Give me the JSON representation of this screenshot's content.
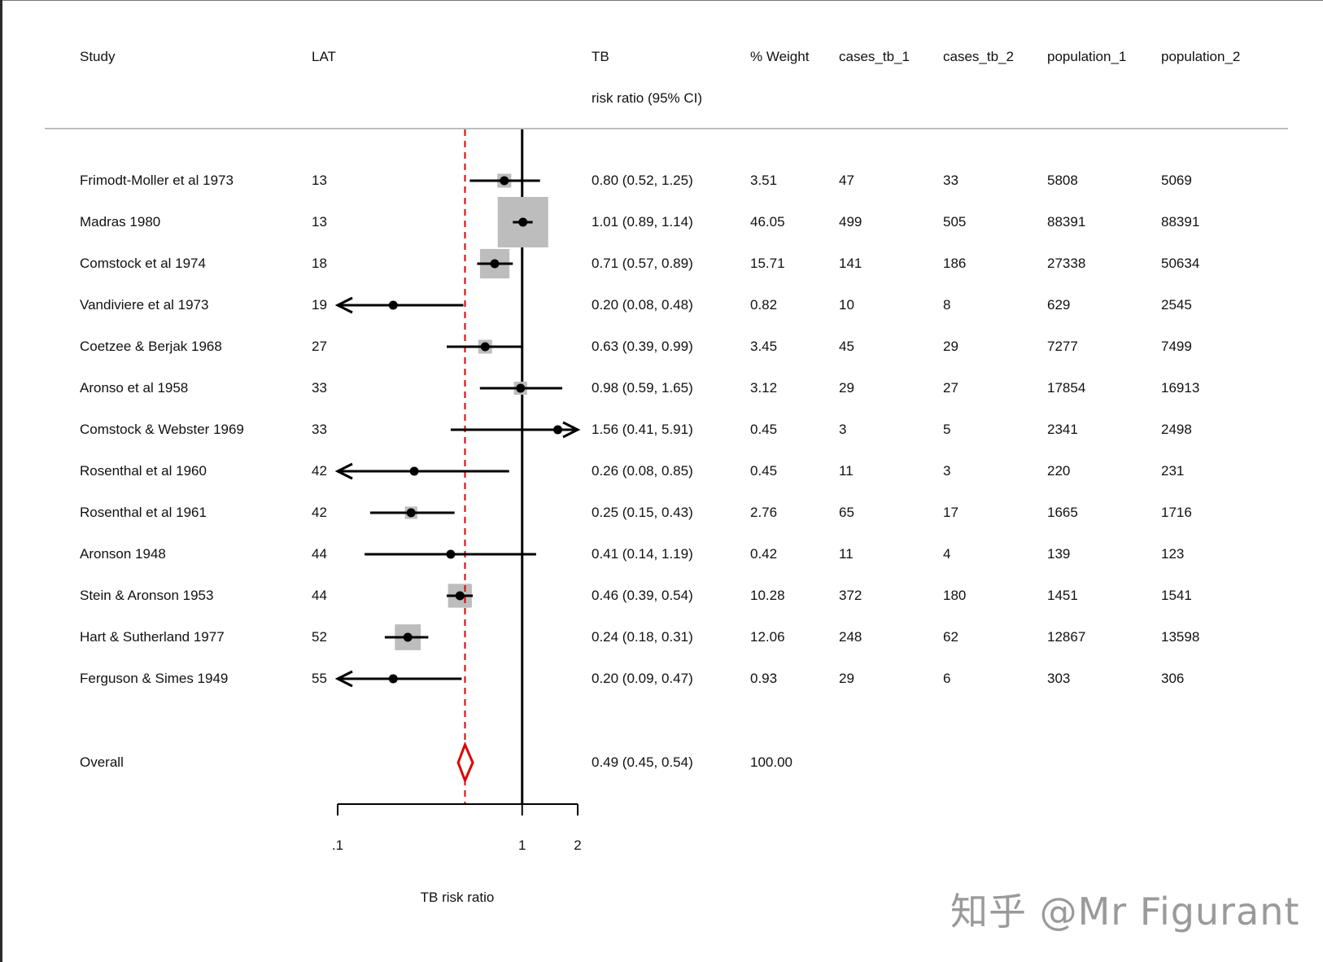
{
  "header": {
    "study": "Study",
    "lat": "LAT",
    "tb": "TB",
    "tb_sub": "risk ratio (95% CI)",
    "weight": "% Weight",
    "cases1": "cases_tb_1",
    "cases2": "cases_tb_2",
    "pop1": "population_1",
    "pop2": "population_2"
  },
  "rows": [
    {
      "study": "Frimodt-Moller et al 1973",
      "lat": "13",
      "rr": "0.80 (0.52, 1.25)",
      "weight": "3.51",
      "cases1": "47",
      "cases2": "33",
      "pop1": "5808",
      "pop2": "5069"
    },
    {
      "study": "Madras 1980",
      "lat": "13",
      "rr": "1.01 (0.89, 1.14)",
      "weight": "46.05",
      "cases1": "499",
      "cases2": "505",
      "pop1": "88391",
      "pop2": "88391"
    },
    {
      "study": "Comstock et al 1974",
      "lat": "18",
      "rr": "0.71 (0.57, 0.89)",
      "weight": "15.71",
      "cases1": "141",
      "cases2": "186",
      "pop1": "27338",
      "pop2": "50634"
    },
    {
      "study": "Vandiviere et al 1973",
      "lat": "19",
      "rr": "0.20 (0.08, 0.48)",
      "weight": "0.82",
      "cases1": "10",
      "cases2": "8",
      "pop1": "629",
      "pop2": "2545"
    },
    {
      "study": "Coetzee & Berjak 1968",
      "lat": "27",
      "rr": "0.63 (0.39, 0.99)",
      "weight": "3.45",
      "cases1": "45",
      "cases2": "29",
      "pop1": "7277",
      "pop2": "7499"
    },
    {
      "study": "Aronso et al 1958",
      "lat": "33",
      "rr": "0.98 (0.59, 1.65)",
      "weight": "3.12",
      "cases1": "29",
      "cases2": "27",
      "pop1": "17854",
      "pop2": "16913"
    },
    {
      "study": "Comstock & Webster 1969",
      "lat": "33",
      "rr": "1.56 (0.41, 5.91)",
      "weight": "0.45",
      "cases1": "3",
      "cases2": "5",
      "pop1": "2341",
      "pop2": "2498"
    },
    {
      "study": "Rosenthal et al 1960",
      "lat": "42",
      "rr": "0.26 (0.08, 0.85)",
      "weight": "0.45",
      "cases1": "11",
      "cases2": "3",
      "pop1": "220",
      "pop2": "231"
    },
    {
      "study": "Rosenthal et al 1961",
      "lat": "42",
      "rr": "0.25 (0.15, 0.43)",
      "weight": "2.76",
      "cases1": "65",
      "cases2": "17",
      "pop1": "1665",
      "pop2": "1716"
    },
    {
      "study": "Aronson 1948",
      "lat": "44",
      "rr": "0.41 (0.14, 1.19)",
      "weight": "0.42",
      "cases1": "11",
      "cases2": "4",
      "pop1": "139",
      "pop2": "123"
    },
    {
      "study": "Stein & Aronson 1953",
      "lat": "44",
      "rr": "0.46 (0.39, 0.54)",
      "weight": "10.28",
      "cases1": "372",
      "cases2": "180",
      "pop1": "1451",
      "pop2": "1541"
    },
    {
      "study": "Hart & Sutherland 1977",
      "lat": "52",
      "rr": "0.24 (0.18, 0.31)",
      "weight": "12.06",
      "cases1": "248",
      "cases2": "62",
      "pop1": "12867",
      "pop2": "13598"
    },
    {
      "study": "Ferguson & Simes 1949",
      "lat": "55",
      "rr": "0.20 (0.09, 0.47)",
      "weight": "0.93",
      "cases1": "29",
      "cases2": "6",
      "pop1": "303",
      "pop2": "306"
    }
  ],
  "overall": {
    "study": "Overall",
    "rr": "0.49 (0.45, 0.54)",
    "weight": "100.00"
  },
  "watermark": "知乎 @Mr Figurant",
  "chart_data": {
    "type": "forest",
    "xlabel": "TB risk ratio",
    "x_scale": "log",
    "xlim": [
      0.1,
      2
    ],
    "x_ticks": [
      0.1,
      1,
      2
    ],
    "x_tick_labels": [
      ".1",
      "1",
      "2"
    ],
    "null_line": 1,
    "pooled_line": 0.49,
    "studies": [
      {
        "name": "Frimodt-Moller et al 1973",
        "rr": 0.8,
        "lo": 0.52,
        "hi": 1.25,
        "weight": 3.51
      },
      {
        "name": "Madras 1980",
        "rr": 1.01,
        "lo": 0.89,
        "hi": 1.14,
        "weight": 46.05
      },
      {
        "name": "Comstock et al 1974",
        "rr": 0.71,
        "lo": 0.57,
        "hi": 0.89,
        "weight": 15.71
      },
      {
        "name": "Vandiviere et al 1973",
        "rr": 0.2,
        "lo": 0.08,
        "hi": 0.48,
        "weight": 0.82
      },
      {
        "name": "Coetzee & Berjak 1968",
        "rr": 0.63,
        "lo": 0.39,
        "hi": 0.99,
        "weight": 3.45
      },
      {
        "name": "Aronso et al 1958",
        "rr": 0.98,
        "lo": 0.59,
        "hi": 1.65,
        "weight": 3.12
      },
      {
        "name": "Comstock & Webster 1969",
        "rr": 1.56,
        "lo": 0.41,
        "hi": 5.91,
        "weight": 0.45
      },
      {
        "name": "Rosenthal et al 1960",
        "rr": 0.26,
        "lo": 0.08,
        "hi": 0.85,
        "weight": 0.45
      },
      {
        "name": "Rosenthal et al 1961",
        "rr": 0.25,
        "lo": 0.15,
        "hi": 0.43,
        "weight": 2.76
      },
      {
        "name": "Aronson 1948",
        "rr": 0.41,
        "lo": 0.14,
        "hi": 1.19,
        "weight": 0.42
      },
      {
        "name": "Stein & Aronson 1953",
        "rr": 0.46,
        "lo": 0.39,
        "hi": 0.54,
        "weight": 10.28
      },
      {
        "name": "Hart & Sutherland 1977",
        "rr": 0.24,
        "lo": 0.18,
        "hi": 0.31,
        "weight": 12.06
      },
      {
        "name": "Ferguson & Simes 1949",
        "rr": 0.2,
        "lo": 0.09,
        "hi": 0.47,
        "weight": 0.93
      }
    ],
    "overall": {
      "rr": 0.49,
      "lo": 0.45,
      "hi": 0.54,
      "weight": 100.0
    },
    "colors": {
      "marker": "#000000",
      "box": "#bdbdbd",
      "diamond": "#e00000",
      "pooled_line": "#e00000"
    }
  }
}
